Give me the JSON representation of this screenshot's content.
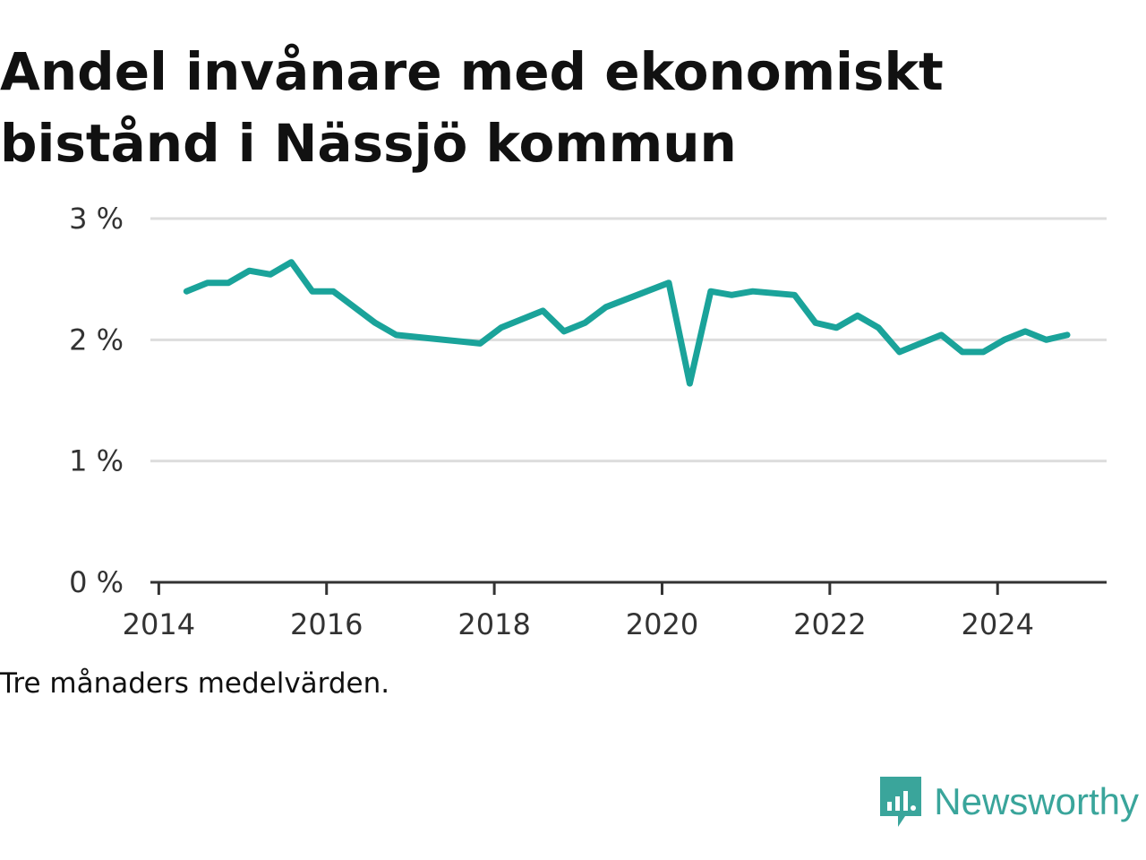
{
  "title": "Andel invånare med ekonomiskt bistånd i Nässjö kommun",
  "note": "Tre månaders medelvärden.",
  "brand": {
    "name": "Newsworthy",
    "icon": "newsworthy-logo-icon",
    "color": "#3aa59b"
  },
  "chart_data": {
    "type": "line",
    "title": "Andel invånare med ekonomiskt bistånd i Nässjö kommun",
    "xlabel": "",
    "ylabel": "",
    "xlim": [
      2013.9,
      2025.3
    ],
    "ylim": [
      0,
      3
    ],
    "x_ticks": [
      2014,
      2016,
      2018,
      2020,
      2022,
      2024
    ],
    "x_tick_labels": [
      "2014",
      "2016",
      "2018",
      "2020",
      "2022",
      "2024"
    ],
    "y_ticks": [
      0,
      1,
      2,
      3
    ],
    "y_tick_labels": [
      "0 %",
      "1 %",
      "2 %",
      "3 %"
    ],
    "grid": "horizontal",
    "legend": "none",
    "line_color": "#1aa39a",
    "series": [
      {
        "x": [
          2014.33,
          2014.58,
          2014.83,
          2015.08,
          2015.33,
          2015.58,
          2015.83,
          2016.08,
          2016.33,
          2016.58,
          2016.83,
          2017.83,
          2018.08,
          2018.58,
          2018.83,
          2019.08,
          2019.33,
          2020.08,
          2020.33,
          2020.58,
          2020.83,
          2021.08,
          2021.58,
          2021.83,
          2022.08,
          2022.33,
          2022.58,
          2022.83,
          2023.33,
          2023.58,
          2023.83,
          2024.08,
          2024.33,
          2024.58,
          2024.83
        ],
        "y": [
          2.4,
          2.47,
          2.47,
          2.57,
          2.54,
          2.64,
          2.4,
          2.4,
          2.27,
          2.14,
          2.04,
          1.97,
          2.1,
          2.24,
          2.07,
          2.14,
          2.27,
          2.47,
          1.64,
          2.4,
          2.37,
          2.4,
          2.37,
          2.14,
          2.1,
          2.2,
          2.1,
          1.9,
          2.04,
          1.9,
          1.9,
          2.0,
          2.07,
          2.0,
          2.04
        ]
      }
    ]
  }
}
